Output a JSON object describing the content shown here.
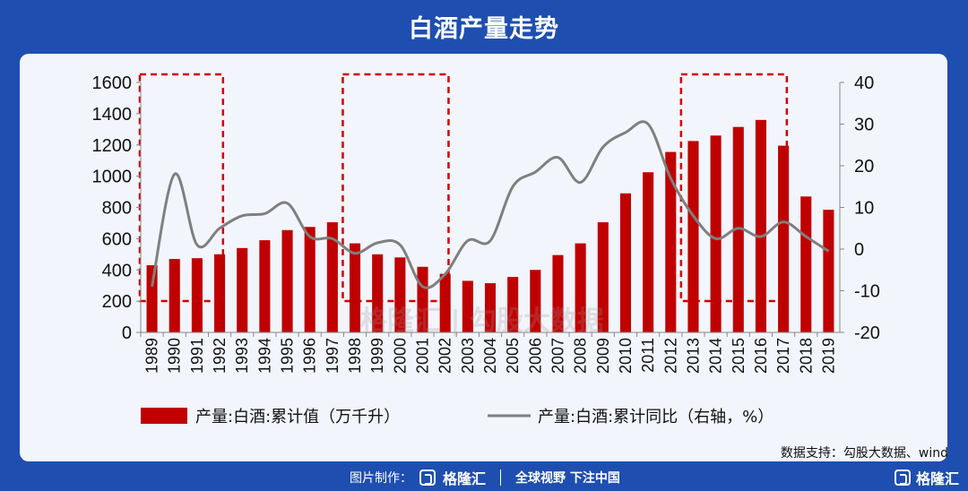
{
  "page": {
    "title": "白酒产量走势",
    "source": "数据支持：勾股大数据、wind",
    "footer_made": "图片制作：",
    "footer_brand": "格隆汇",
    "footer_slogan": "全球视野 下注中国",
    "watermark": "格隆汇 | 勾股大数据"
  },
  "colors": {
    "bar": "#c00000",
    "line": "#7f7f7f",
    "box": "#d00000",
    "background": "#1e4fb0"
  },
  "chart_data": {
    "type": "bar",
    "title": "白酒产量走势",
    "categories": [
      "1989",
      "1990",
      "1991",
      "1992",
      "1993",
      "1994",
      "1995",
      "1996",
      "1997",
      "1998",
      "1999",
      "2000",
      "2001",
      "2002",
      "2003",
      "2004",
      "2005",
      "2006",
      "2007",
      "2008",
      "2009",
      "2010",
      "2011",
      "2012",
      "2013",
      "2014",
      "2015",
      "2016",
      "2017",
      "2018",
      "2019"
    ],
    "series": [
      {
        "name": "产量:白酒:累计值（万千升）",
        "type": "bar",
        "axis": "left",
        "values": [
          430,
          470,
          475,
          500,
          540,
          590,
          655,
          675,
          705,
          570,
          500,
          480,
          420,
          375,
          330,
          315,
          355,
          400,
          495,
          570,
          705,
          890,
          1025,
          1155,
          1225,
          1260,
          1315,
          1360,
          1195,
          870,
          785
        ]
      },
      {
        "name": "产量:白酒:累计同比（右轴，%）",
        "type": "line",
        "axis": "right",
        "values": [
          -9,
          18,
          1,
          5,
          8,
          8.5,
          11,
          3,
          2.5,
          -1,
          1.5,
          1,
          -9,
          -6,
          2,
          2,
          15,
          18.5,
          22,
          16,
          24.5,
          28,
          30,
          17,
          8,
          2.5,
          5,
          3,
          6.5,
          3,
          -0.5
        ]
      }
    ],
    "ylim_left": [
      0,
      1600
    ],
    "yticks_left": [
      "0",
      "200",
      "400",
      "600",
      "800",
      "1000",
      "1200",
      "1400",
      "1600"
    ],
    "ylim_right": [
      -20,
      40
    ],
    "yticks_right": [
      "-20",
      "-10",
      "0",
      "10",
      "20",
      "30",
      "40"
    ],
    "highlight_boxes": [
      {
        "from": "1989",
        "to": "1992"
      },
      {
        "from": "1998",
        "to": "2002"
      },
      {
        "from": "2013",
        "to": "2017"
      }
    ],
    "legend_position": "bottom",
    "grid": false
  }
}
